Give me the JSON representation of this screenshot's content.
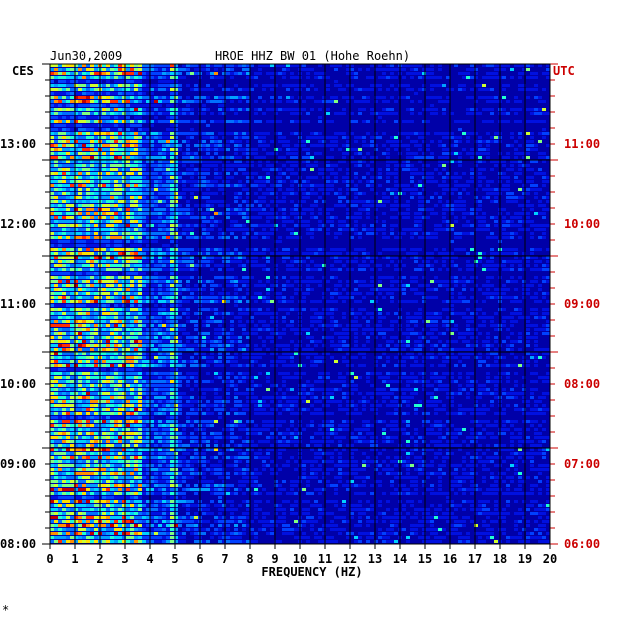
{
  "chart_data": {
    "type": "heatmap",
    "date_label": "Jun30,2009",
    "station_label": "HROE HHZ BW 01 (Hohe Roehn)",
    "left_timezone": "CES",
    "right_timezone": "UTC",
    "xlabel": "FREQUENCY (HZ)",
    "x_ticks": [
      "0",
      "1",
      "2",
      "3",
      "4",
      "5",
      "6",
      "7",
      "8",
      "9",
      "10",
      "11",
      "12",
      "13",
      "14",
      "15",
      "16",
      "17",
      "18",
      "19",
      "20"
    ],
    "xlim": [
      0,
      20
    ],
    "left_time_ticks": [
      "13:00",
      "12:00",
      "11:00",
      "10:00",
      "09:00",
      "08:00"
    ],
    "right_time_ticks": [
      "11:00",
      "10:00",
      "09:00",
      "08:00",
      "07:00",
      "06:00"
    ],
    "colors": {
      "background": "#0000a8",
      "ticks_left": "#000000",
      "ticks_right": "#cc0000"
    },
    "footer_mark": "*"
  }
}
